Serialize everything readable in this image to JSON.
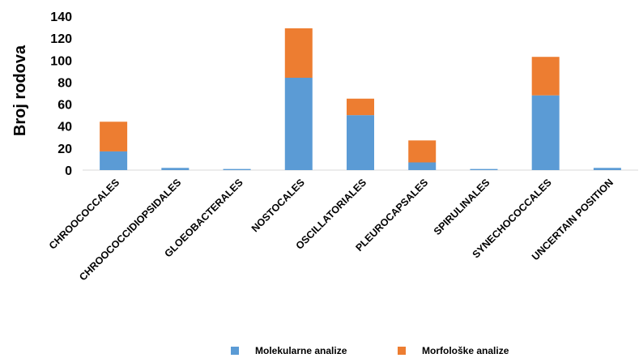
{
  "chart_data": {
    "type": "bar",
    "stacked": true,
    "categories": [
      "CHROOCOCCALES",
      "CHROOCOCCIDIOPSIDALES",
      "GLOEOBACTERALES",
      "NOSTOCALES",
      "OSCILLATORIALES",
      "PLEUROCAPSALES",
      "SPIRULINALES",
      "SYNECHOCOCCALES",
      "UNCERTAIN POSITION"
    ],
    "series": [
      {
        "name": "Molekularne analize",
        "color": "#5b9bd5",
        "values": [
          17,
          2,
          1,
          84,
          50,
          7,
          1,
          68,
          2
        ]
      },
      {
        "name": "Morfološke analize",
        "color": "#ed7d31",
        "values": [
          27,
          0,
          0,
          45,
          15,
          20,
          0,
          35,
          0
        ]
      }
    ],
    "ylabel": "Broj rodova",
    "xlabel": "",
    "ylim": [
      0,
      140
    ],
    "yticks": [
      0,
      20,
      40,
      60,
      80,
      100,
      120,
      140
    ],
    "grid": false,
    "legend_position": "bottom"
  }
}
